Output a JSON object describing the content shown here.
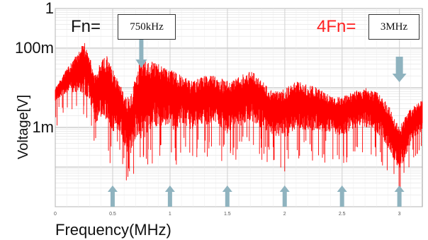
{
  "chart_data": {
    "type": "line",
    "title": "",
    "xlabel": "Frequency(MHz)",
    "ylabel": "Voltage[V]",
    "xlim": [
      0,
      3.2
    ],
    "x_ticks": [
      "0",
      "0.5",
      "1",
      "1.5",
      "2",
      "2.5",
      "3"
    ],
    "y_scale": "log",
    "ylim": [
      1e-05,
      1
    ],
    "y_ticks": [
      {
        "label": "1",
        "value": 1
      },
      {
        "label": "100m",
        "value": 0.1
      },
      {
        "label": "1m",
        "value": 0.001
      }
    ],
    "grid": true,
    "series": [
      {
        "color": "#ff0000",
        "envelope_x": [
          0.0,
          0.1,
          0.2,
          0.25,
          0.3,
          0.35,
          0.4,
          0.45,
          0.5,
          0.55,
          0.6,
          0.65,
          0.7,
          0.75,
          0.8,
          0.85,
          0.9,
          0.95,
          1.0,
          1.05,
          1.1,
          1.2,
          1.3,
          1.4,
          1.5,
          1.6,
          1.7,
          1.8,
          1.9,
          2.0,
          2.1,
          2.2,
          2.3,
          2.4,
          2.5,
          2.6,
          2.7,
          2.8,
          2.9,
          2.95,
          3.0,
          3.05,
          3.1,
          3.2
        ],
        "envelope_top": [
          0.01,
          0.03,
          0.08,
          0.15,
          0.06,
          0.02,
          0.05,
          0.07,
          0.03,
          0.015,
          0.008,
          0.005,
          0.02,
          0.06,
          0.05,
          0.045,
          0.04,
          0.035,
          0.03,
          0.025,
          0.02,
          0.015,
          0.02,
          0.02,
          0.015,
          0.02,
          0.03,
          0.015,
          0.008,
          0.01,
          0.015,
          0.012,
          0.01,
          0.006,
          0.006,
          0.008,
          0.01,
          0.008,
          0.004,
          0.002,
          0.001,
          0.002,
          0.003,
          0.005
        ],
        "envelope_bottom": [
          0.004,
          0.006,
          0.005,
          0.004,
          0.003,
          0.0008,
          0.001,
          0.0008,
          0.0003,
          0.0005,
          0.0002,
          0.0001,
          0.0003,
          0.0002,
          0.0003,
          0.0005,
          0.0006,
          0.0005,
          0.0006,
          0.0004,
          0.0008,
          0.0005,
          0.0007,
          0.0008,
          0.0004,
          0.0006,
          0.0008,
          0.0006,
          0.0004,
          0.0003,
          0.0006,
          0.0005,
          0.0005,
          0.0005,
          0.0004,
          0.0006,
          0.0007,
          0.0005,
          0.0002,
          0.0001,
          5e-05,
          0.0001,
          0.0003,
          0.0006
        ]
      }
    ],
    "annotations": [
      {
        "label": "Fn=",
        "box_text": "750kHz",
        "x": 0.75,
        "color": "#111111"
      },
      {
        "label": "4Fn=",
        "box_text": "3MHz",
        "x": 3.0,
        "color": "#ff2020"
      }
    ],
    "marker_arrows_up": [
      0.5,
      1.0,
      1.5,
      2.0,
      2.5,
      3.0
    ],
    "marker_arrows_down": [
      0.75,
      3.0
    ],
    "arrow_color": "#8fb3bf"
  }
}
